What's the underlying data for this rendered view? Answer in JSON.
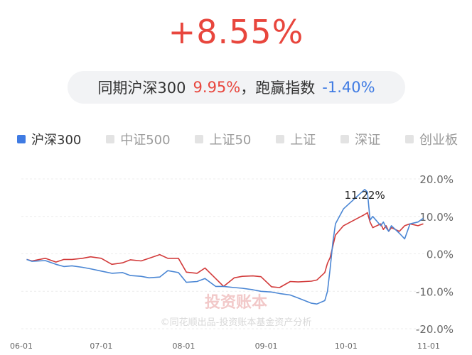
{
  "header": {
    "return_value": "+8.55%",
    "compare_prefix": "同期沪深300",
    "benchmark_return": "9.95%",
    "compare_middle": "，跑赢指数",
    "excess_return": "-1.40%"
  },
  "legend": [
    {
      "label": "沪深300",
      "active": true
    },
    {
      "label": "中证500",
      "active": false
    },
    {
      "label": "上证50",
      "active": false
    },
    {
      "label": "上证",
      "active": false
    },
    {
      "label": "深证",
      "active": false
    },
    {
      "label": "创业板",
      "active": false
    }
  ],
  "watermark": {
    "logo_text": "投资账本",
    "credit": "©同花顺出品-投资账本基金资产分析"
  },
  "colors": {
    "fund_line": "#d23a3a",
    "index_line": "#4a86d4",
    "positive": "#e8463d",
    "negative": "#3f7be3"
  },
  "chart_data": {
    "type": "line",
    "x_tick_labels": [
      "06-01",
      "07-01",
      "08-01",
      "09-01",
      "10-01",
      "11-01"
    ],
    "y_tick_labels": [
      "20.0%",
      "10.0%",
      "0.0%",
      "-10.0%",
      "-20.0%"
    ],
    "y_ticks": [
      20,
      10,
      0,
      -10,
      -20
    ],
    "ylim": [
      -20,
      20
    ],
    "xlim": [
      "2024-06-01",
      "2024-11-01"
    ],
    "grid": true,
    "annotation": {
      "text": "11.22%",
      "x": "2024-10-08",
      "y": 16.6
    },
    "series": [
      {
        "role": "fund",
        "x": [
          "2024-06-03",
          "2024-06-05",
          "2024-06-10",
          "2024-06-14",
          "2024-06-17",
          "2024-06-20",
          "2024-06-24",
          "2024-06-27",
          "2024-07-01",
          "2024-07-05",
          "2024-07-09",
          "2024-07-12",
          "2024-07-16",
          "2024-07-19",
          "2024-07-23",
          "2024-07-26",
          "2024-07-30",
          "2024-08-02",
          "2024-08-06",
          "2024-08-09",
          "2024-08-13",
          "2024-08-16",
          "2024-08-20",
          "2024-08-23",
          "2024-08-27",
          "2024-08-30",
          "2024-09-03",
          "2024-09-06",
          "2024-09-10",
          "2024-09-13",
          "2024-09-18",
          "2024-09-20",
          "2024-09-23",
          "2024-09-24",
          "2024-09-25",
          "2024-09-26",
          "2024-09-27",
          "2024-09-30",
          "2024-10-08",
          "2024-10-09",
          "2024-10-10",
          "2024-10-11",
          "2024-10-14",
          "2024-10-15",
          "2024-10-16",
          "2024-10-17",
          "2024-10-18",
          "2024-10-21",
          "2024-10-23",
          "2024-10-25",
          "2024-10-28",
          "2024-10-30"
        ],
        "y": [
          -1.5,
          -1.9,
          -1.2,
          -2.2,
          -1.5,
          -1.5,
          -1.2,
          -0.8,
          -1.2,
          -2.8,
          -2.4,
          -1.6,
          -1.9,
          -1.2,
          -0.2,
          -1.2,
          -1.2,
          -4.9,
          -5.2,
          -3.8,
          -6.6,
          -8.7,
          -6.4,
          -6.0,
          -5.9,
          -6.1,
          -8.8,
          -9.0,
          -7.4,
          -7.5,
          -7.3,
          -7.0,
          -5.0,
          -2.5,
          -1.0,
          2.0,
          5.0,
          7.5,
          10.5,
          11.0,
          8.5,
          7.0,
          8.0,
          6.5,
          7.5,
          6.0,
          7.0,
          6.0,
          7.5,
          8.0,
          7.5,
          8.0
        ]
      },
      {
        "role": "index",
        "x": [
          "2024-06-03",
          "2024-06-05",
          "2024-06-10",
          "2024-06-14",
          "2024-06-17",
          "2024-06-20",
          "2024-06-24",
          "2024-06-27",
          "2024-07-01",
          "2024-07-05",
          "2024-07-09",
          "2024-07-12",
          "2024-07-16",
          "2024-07-19",
          "2024-07-23",
          "2024-07-26",
          "2024-07-30",
          "2024-08-02",
          "2024-08-06",
          "2024-08-09",
          "2024-08-13",
          "2024-08-16",
          "2024-08-20",
          "2024-08-23",
          "2024-08-27",
          "2024-08-30",
          "2024-09-03",
          "2024-09-06",
          "2024-09-10",
          "2024-09-13",
          "2024-09-18",
          "2024-09-20",
          "2024-09-23",
          "2024-09-24",
          "2024-09-25",
          "2024-09-26",
          "2024-09-27",
          "2024-09-30",
          "2024-10-08",
          "2024-10-09",
          "2024-10-10",
          "2024-10-11",
          "2024-10-14",
          "2024-10-15",
          "2024-10-16",
          "2024-10-17",
          "2024-10-18",
          "2024-10-21",
          "2024-10-23",
          "2024-10-25",
          "2024-10-28",
          "2024-10-30"
        ],
        "y": [
          -1.5,
          -2.0,
          -1.8,
          -2.8,
          -3.4,
          -3.2,
          -3.6,
          -4.0,
          -4.6,
          -5.2,
          -5.0,
          -5.8,
          -6.0,
          -6.4,
          -6.2,
          -4.5,
          -5.0,
          -7.6,
          -7.4,
          -6.6,
          -8.7,
          -8.7,
          -9.0,
          -9.2,
          -9.6,
          -10.0,
          -10.2,
          -10.6,
          -11.0,
          -11.8,
          -13.2,
          -13.4,
          -12.5,
          -10.0,
          -4.0,
          3.0,
          8.0,
          12.0,
          17.2,
          16.5,
          9.0,
          10.0,
          7.5,
          8.5,
          7.0,
          6.0,
          7.5,
          5.5,
          4.0,
          8.0,
          8.5,
          9.5
        ]
      }
    ]
  }
}
